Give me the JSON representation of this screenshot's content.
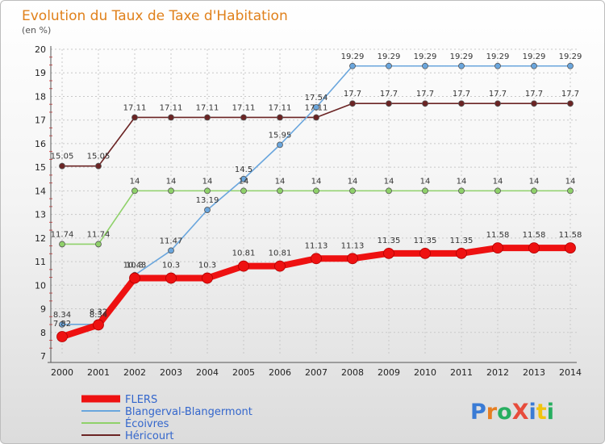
{
  "chart_data": {
    "type": "line",
    "title": "Evolution du Taux de Taxe d'Habitation",
    "subtitle": "(en %)",
    "x": [
      "2000",
      "2001",
      "2002",
      "2003",
      "2004",
      "2005",
      "2006",
      "2007",
      "2008",
      "2009",
      "2010",
      "2011",
      "2012",
      "2013",
      "2014"
    ],
    "y_ticks": [
      "7",
      "8",
      "9",
      "10",
      "11",
      "12",
      "13",
      "14",
      "15",
      "16",
      "17",
      "18",
      "19",
      "20"
    ],
    "ylim": [
      7,
      20
    ],
    "grid": true,
    "legend_position": "bottom-left",
    "series": [
      {
        "name": "Héricourt",
        "color": "#6b2424",
        "values": [
          15.05,
          15.05,
          17.11,
          17.11,
          17.11,
          17.11,
          17.11,
          17.11,
          17.7,
          17.7,
          17.7,
          17.7,
          17.7,
          17.7,
          17.7
        ],
        "labels": [
          "15.05",
          "15.05",
          "17.11",
          "17.11",
          "17.11",
          "17.11",
          "17.11",
          "17.11",
          "17.7",
          "17.7",
          "17.7",
          "17.7",
          "17.7",
          "17.7",
          "17.7"
        ]
      },
      {
        "name": "Écoivres",
        "color": "#8fd16a",
        "values": [
          11.74,
          11.74,
          14,
          14,
          14,
          14,
          14,
          14,
          14,
          14,
          14,
          14,
          14,
          14,
          14
        ],
        "labels": [
          "11.74",
          "11.74",
          "14",
          "14",
          "14",
          "14",
          "14",
          "14",
          "14",
          "14",
          "14",
          "14",
          "14",
          "14",
          "14"
        ]
      },
      {
        "name": "Blangerval-Blangermont",
        "color": "#6aa6dd",
        "values": [
          8.34,
          8.34,
          10.43,
          11.47,
          13.19,
          14.5,
          15.95,
          17.54,
          19.29,
          19.29,
          19.29,
          19.29,
          19.29,
          19.29,
          19.29
        ],
        "labels": [
          "8.34",
          "8.34",
          "10.43",
          "11.47",
          "13.19",
          "14.5",
          "15.95",
          "17.54",
          "19.29",
          "19.29",
          "19.29",
          "19.29",
          "19.29",
          "19.29",
          "19.29"
        ]
      },
      {
        "name": "FLERS",
        "color": "#ee1111",
        "values": [
          7.82,
          8.32,
          10.3,
          10.3,
          10.3,
          10.81,
          10.81,
          11.13,
          11.13,
          11.35,
          11.35,
          11.35,
          11.58,
          11.58,
          11.58
        ],
        "labels": [
          "7.82",
          "8.32",
          "10.3",
          "10.3",
          "10.3",
          "10.81",
          "10.81",
          "11.13",
          "11.13",
          "11.35",
          "11.35",
          "11.35",
          "11.58",
          "11.58",
          "11.58"
        ]
      }
    ],
    "legend": [
      "FLERS",
      "Blangerval-Blangermont",
      "Écoivres",
      "Héricourt"
    ]
  },
  "branding": {
    "logo_text": "ProXiti"
  }
}
